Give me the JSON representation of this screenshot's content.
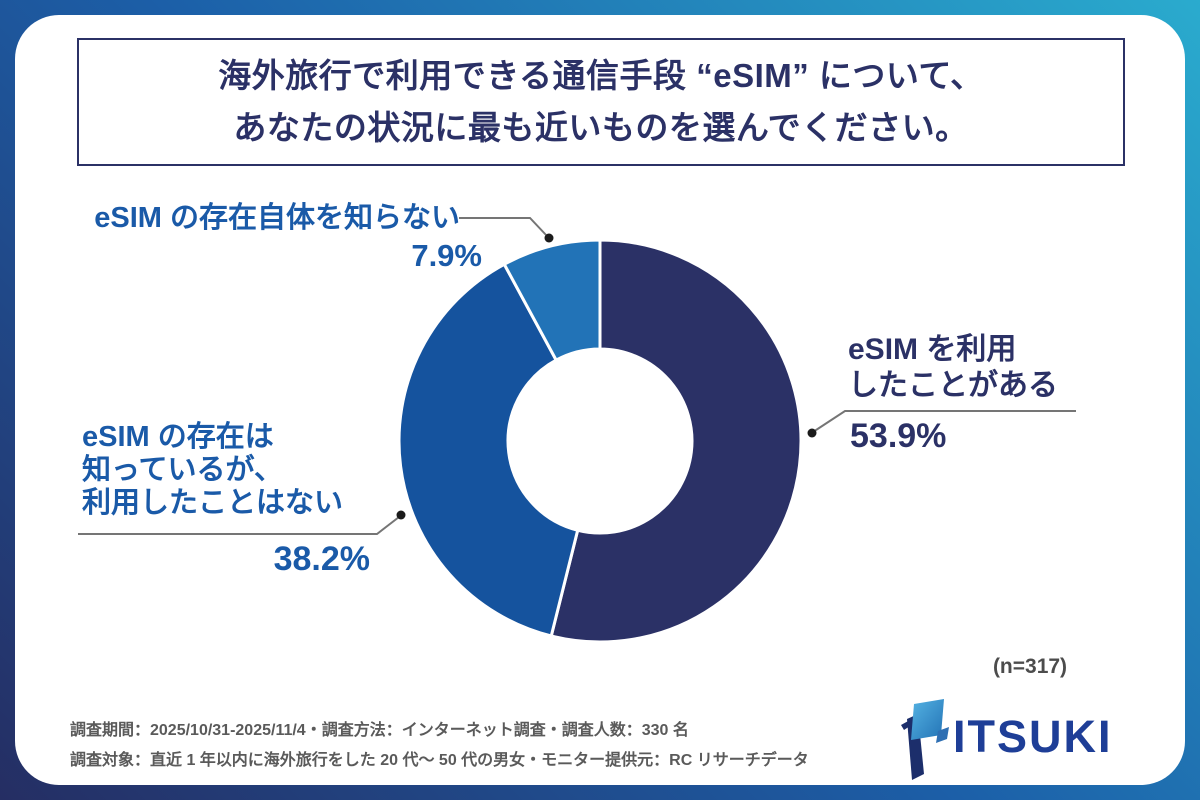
{
  "title": {
    "line1": "海外旅行で利用できる通信手段 “eSIM” について、",
    "line2": "あなたの状況に最も近いものを選んでください。"
  },
  "chart_data": {
    "type": "pie",
    "subtype": "donut",
    "title": "海外旅行で利用できる通信手段 “eSIM” について、あなたの状況に最も近いものを選んでください。",
    "unit": "%",
    "start_angle_deg": 0,
    "direction": "clockwise",
    "inner_radius_ratio": 0.46,
    "sample_note": "(n=317)",
    "segments": [
      {
        "label": "eSIM を利用したことがある",
        "value": 53.9,
        "display": "53.9%",
        "color": "#2B3166"
      },
      {
        "label": "eSIM の存在は知っているが、利用したことはない",
        "value": 38.2,
        "display": "38.2%",
        "color": "#15539E"
      },
      {
        "label": "eSIM の存在自体を知らない",
        "value": 7.9,
        "display": "7.9%",
        "color": "#2273B7"
      }
    ]
  },
  "callouts": {
    "right": {
      "line1": "eSIM を利用",
      "line2": "したことがある"
    },
    "left": {
      "line1": "eSIM の存在は",
      "line2": "知っているが、",
      "line3": "利用したことはない"
    },
    "top": {
      "line1": "eSIM の存在自体を知らない"
    }
  },
  "footer": {
    "note1": "調査期間：2025/10/31-2025/11/4・調査方法：インターネット調査・調査人数：330 名",
    "note2": "調査対象：直近 1 年以内に海外旅行をした 20 代～ 50 代の男女・モニター提供元：RC リサーチデータ"
  },
  "logo": {
    "text": "ITSUKI"
  },
  "colors": {
    "title_navy": "#2B3166",
    "label_blue": "#1A5AA8",
    "segment_dark": "#2B3166",
    "segment_mid": "#15539E",
    "segment_light": "#2273B7",
    "frame_gradient_start": "#252E63",
    "frame_gradient_mid": "#1C5FA8",
    "frame_gradient_end": "#2AABCE",
    "logo_text": "#1E3E97",
    "leader_line": "#757575",
    "leader_dot": "#1B1B1B",
    "footer_gray": "#5A5A5A"
  }
}
